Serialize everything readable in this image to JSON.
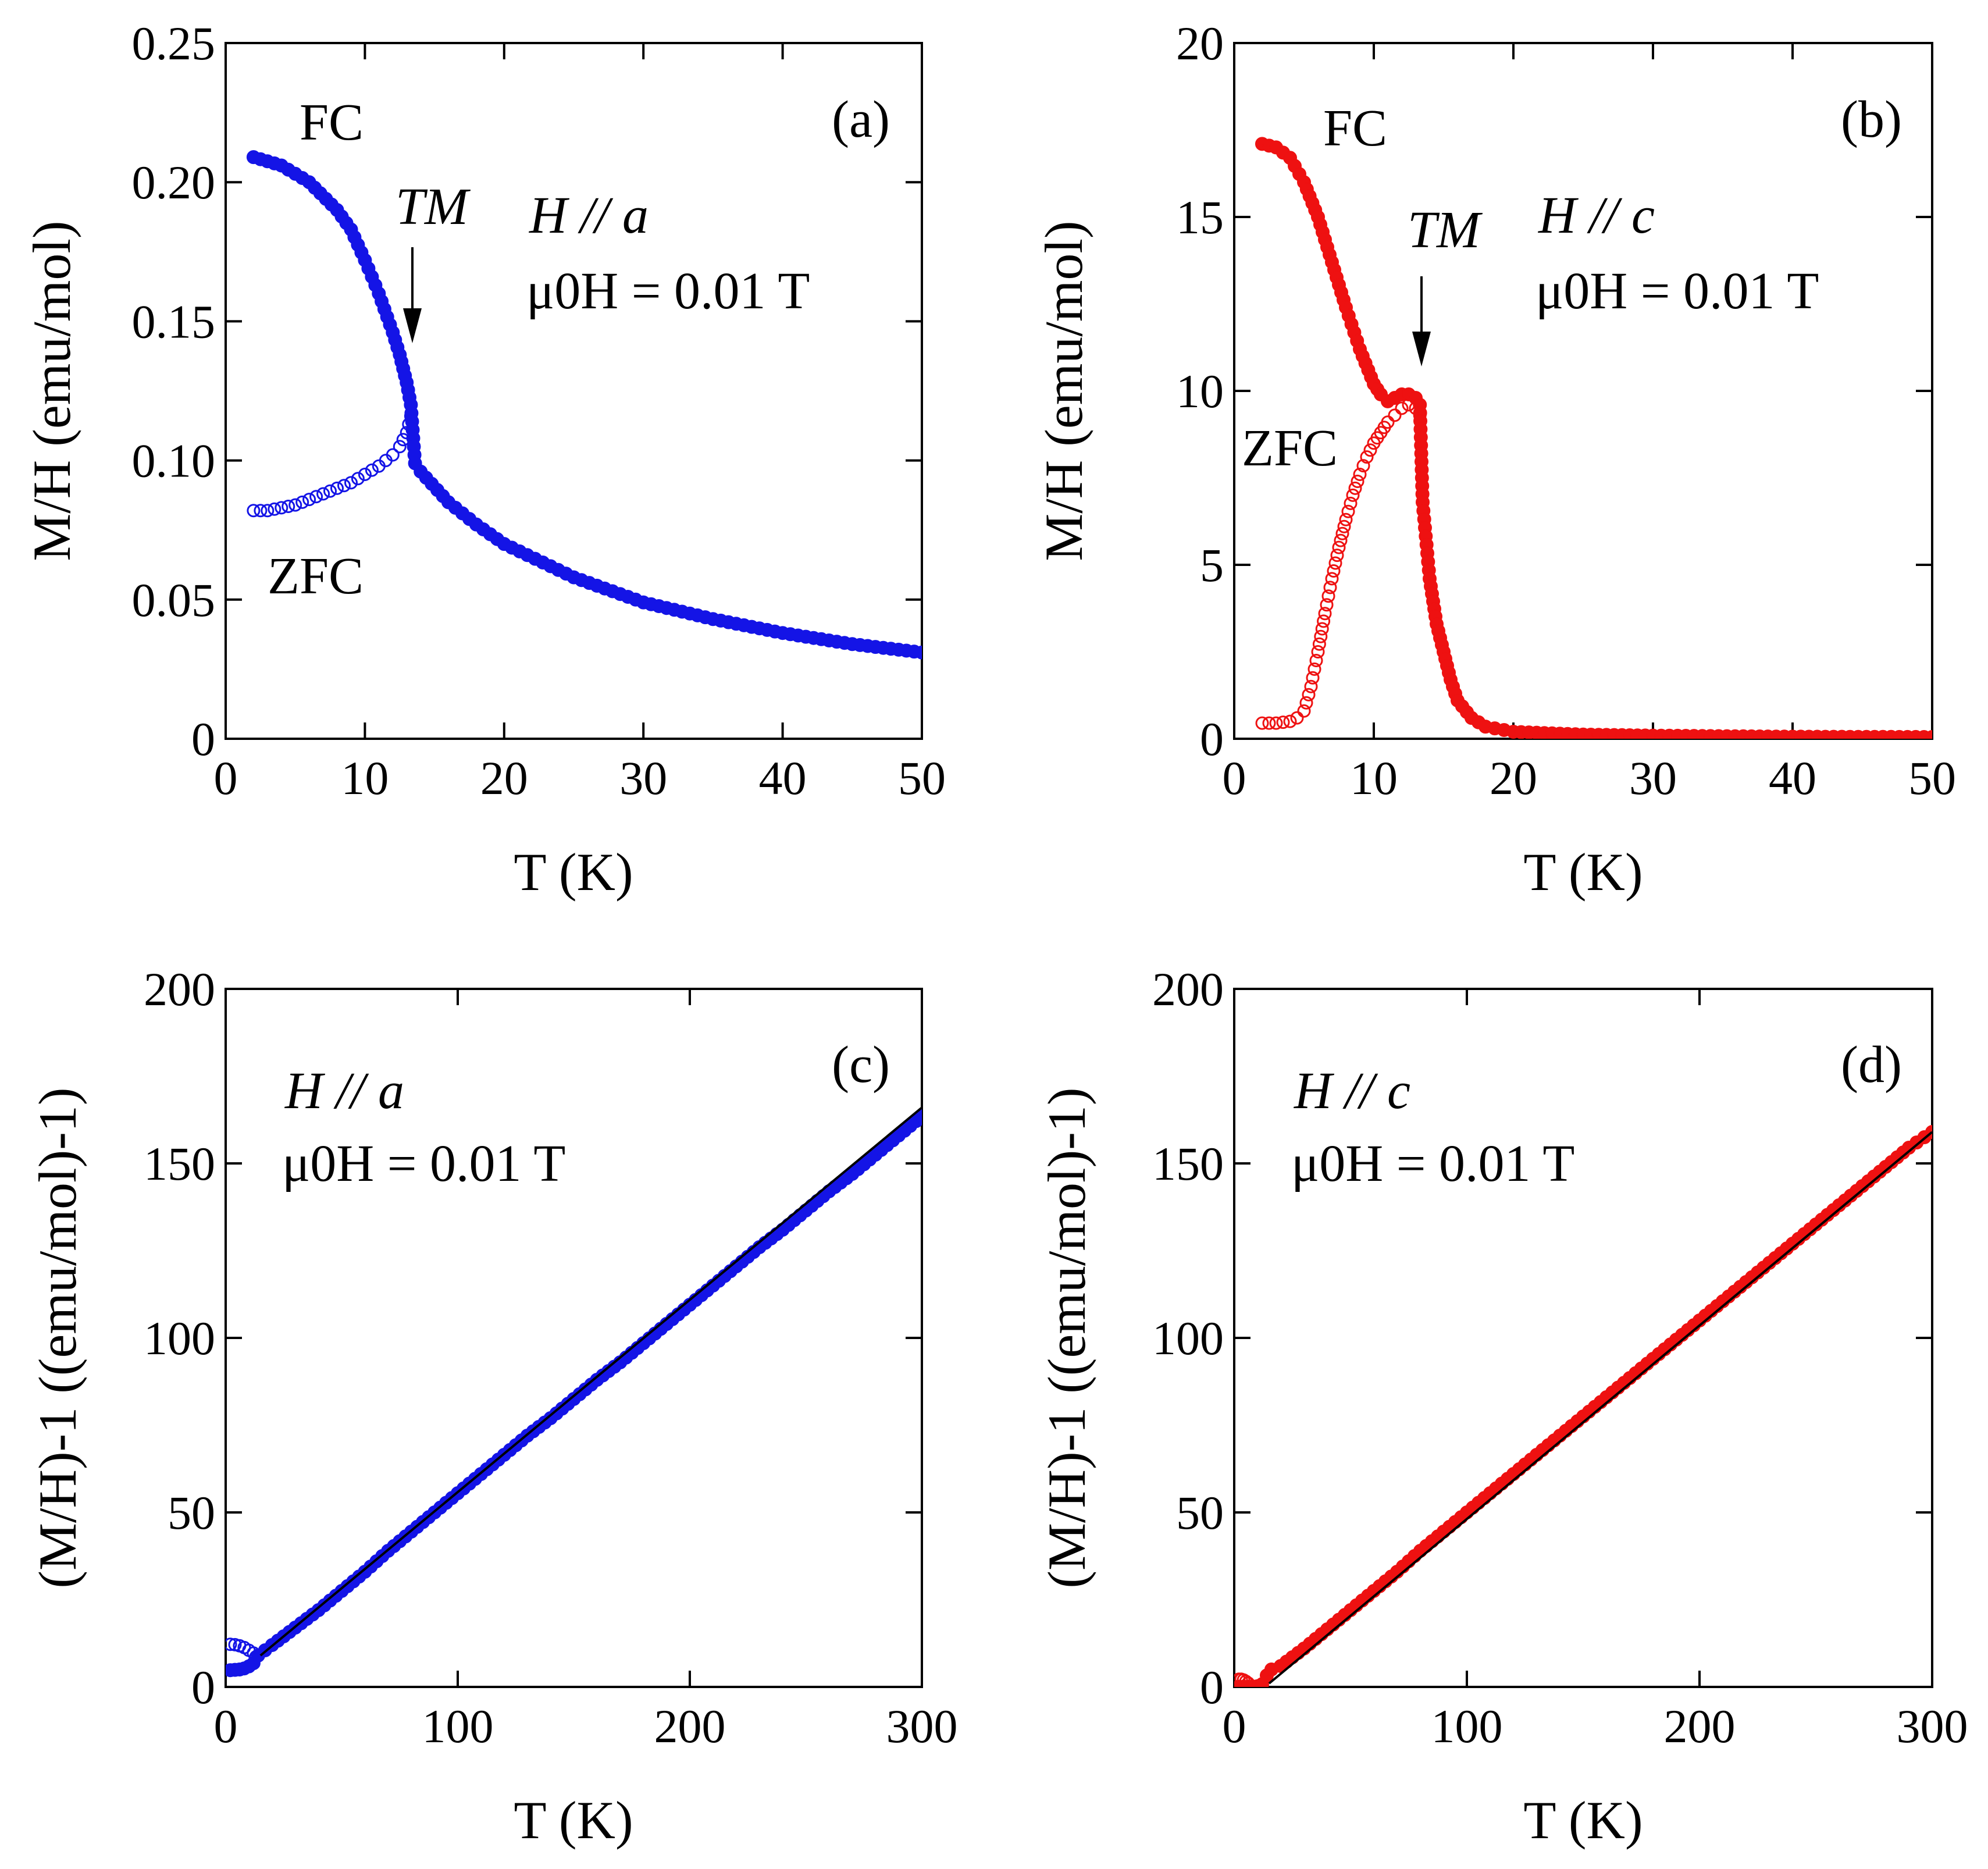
{
  "chart_data": [
    {
      "type": "scatter",
      "panel_label": "(a)",
      "condition_direction": "H // a",
      "condition_field": "μ0H = 0.01 T",
      "xlabel": "T (K)",
      "ylabel": "M/H  (emu/mol)",
      "xlim": [
        0,
        50
      ],
      "ylim": [
        0,
        0.25
      ],
      "xticks": [
        "0",
        "10",
        "20",
        "30",
        "40",
        "50"
      ],
      "yticks": [
        "0",
        "0.05",
        "0.10",
        "0.15",
        "0.20",
        "0.25"
      ],
      "transition_label": "TM",
      "transition_T": 13.3,
      "color": "#1414e6",
      "series": [
        {
          "name": "FC",
          "marker": "filled",
          "x": [
            2,
            4,
            6,
            8,
            9,
            10,
            11,
            12,
            12.5,
            13,
            13.3,
            13.6,
            14,
            16,
            18,
            20,
            25,
            30,
            35,
            40,
            45,
            50
          ],
          "y": [
            0.209,
            0.206,
            0.2,
            0.19,
            0.183,
            0.172,
            0.16,
            0.146,
            0.138,
            0.128,
            0.12,
            0.099,
            0.096,
            0.085,
            0.077,
            0.07,
            0.058,
            0.049,
            0.043,
            0.038,
            0.034,
            0.031
          ]
        },
        {
          "name": "ZFC",
          "marker": "open",
          "x": [
            2,
            3,
            4,
            5,
            6,
            7,
            8,
            9,
            10,
            11,
            12,
            12.5,
            13,
            13.3
          ],
          "y": [
            0.082,
            0.082,
            0.083,
            0.084,
            0.086,
            0.088,
            0.09,
            0.092,
            0.095,
            0.098,
            0.102,
            0.105,
            0.11,
            0.116
          ]
        }
      ]
    },
    {
      "type": "scatter",
      "panel_label": "(b)",
      "condition_direction": "H // c",
      "condition_field": "μ0H = 0.01 T",
      "xlabel": "T (K)",
      "ylabel": "M/H  (emu/mol)",
      "xlim": [
        0,
        50
      ],
      "ylim": [
        0,
        20
      ],
      "xticks": [
        "0",
        "10",
        "20",
        "30",
        "40",
        "50"
      ],
      "yticks": [
        "0",
        "5",
        "10",
        "15",
        "20"
      ],
      "transition_label": "TM",
      "transition_T": 13.3,
      "color": "#ee1111",
      "series": [
        {
          "name": "FC",
          "marker": "filled",
          "x": [
            2,
            3,
            4,
            5,
            6,
            7,
            8,
            9,
            10,
            10.5,
            11,
            11.5,
            12,
            12.5,
            13,
            13.3,
            13.5,
            14,
            14.5,
            15,
            15.5,
            16,
            17,
            18,
            20,
            25,
            30,
            40,
            50
          ],
          "y": [
            17.1,
            17.0,
            16.7,
            16.0,
            15.0,
            13.7,
            12.4,
            11.2,
            10.2,
            9.9,
            9.7,
            9.8,
            9.9,
            9.9,
            9.8,
            9.6,
            6.8,
            4.6,
            3.3,
            2.5,
            1.7,
            1.1,
            0.6,
            0.35,
            0.2,
            0.12,
            0.09,
            0.06,
            0.05
          ]
        },
        {
          "name": "ZFC",
          "marker": "open",
          "x": [
            2,
            3,
            4,
            4.5,
            5,
            5.5,
            6,
            6.5,
            7,
            7.5,
            8,
            8.5,
            9,
            9.5,
            10,
            10.5,
            11,
            11.5,
            12,
            12.5,
            13,
            13.3
          ],
          "y": [
            0.45,
            0.45,
            0.5,
            0.6,
            0.8,
            1.5,
            2.5,
            3.6,
            4.6,
            5.5,
            6.3,
            7.0,
            7.6,
            8.1,
            8.5,
            8.8,
            9.1,
            9.3,
            9.5,
            9.6,
            9.5,
            9.3
          ]
        }
      ]
    },
    {
      "type": "scatter",
      "panel_label": "(c)",
      "condition_direction": "H // a",
      "condition_field": "μ0H = 0.01 T",
      "xlabel": "T (K)",
      "ylabel": "(M/H)-1  ((emu/mol)-1)",
      "xlim": [
        0,
        300
      ],
      "ylim": [
        0,
        200
      ],
      "xticks": [
        "0",
        "100",
        "200",
        "300"
      ],
      "yticks": [
        "0",
        "50",
        "100",
        "150",
        "200"
      ],
      "color": "#1414e6",
      "fit_line": {
        "x": [
          15,
          300
        ],
        "y": [
          9,
          166
        ]
      },
      "series": [
        {
          "name": "FC",
          "marker": "filled",
          "x": [
            2,
            4,
            6,
            8,
            10,
            12,
            14,
            20,
            30,
            40,
            50,
            60,
            70,
            80,
            90,
            100,
            110,
            120,
            130,
            140,
            150,
            160,
            170,
            180,
            190,
            200,
            210,
            220,
            230,
            240,
            250,
            260,
            270,
            280,
            290,
            300
          ],
          "y": [
            4.8,
            4.9,
            5.0,
            5.3,
            5.9,
            6.8,
            9.0,
            12,
            17,
            22,
            27.5,
            33,
            39,
            44.5,
            50,
            55.5,
            61,
            66.5,
            72,
            77,
            82.5,
            88,
            93,
            98.5,
            104,
            109.5,
            115,
            120.5,
            126,
            131,
            136.5,
            142,
            147,
            152.5,
            158,
            163.5
          ]
        },
        {
          "name": "ZFC",
          "marker": "open",
          "x": [
            2,
            4,
            6,
            8,
            10,
            12,
            13
          ],
          "y": [
            12.2,
            12.1,
            11.8,
            11.3,
            10.5,
            9.7,
            8.6
          ]
        }
      ]
    },
    {
      "type": "scatter",
      "panel_label": "(d)",
      "condition_direction": "H // c",
      "condition_field": "μ0H = 0.01 T",
      "xlabel": "T (K)",
      "ylabel": "(M/H)-1  ((emu/mol)-1)",
      "xlim": [
        0,
        300
      ],
      "ylim": [
        0,
        200
      ],
      "xticks": [
        "0",
        "100",
        "200",
        "300"
      ],
      "yticks": [
        "0",
        "50",
        "100",
        "150",
        "200"
      ],
      "color": "#ee1111",
      "fit_line": {
        "x": [
          15,
          300
        ],
        "y": [
          1,
          159
        ]
      },
      "series": [
        {
          "name": "FC",
          "marker": "filled",
          "x": [
            2,
            4,
            6,
            8,
            10,
            12,
            14,
            16,
            20,
            30,
            40,
            50,
            60,
            70,
            80,
            90,
            100,
            110,
            120,
            130,
            140,
            150,
            160,
            170,
            180,
            190,
            200,
            210,
            220,
            230,
            240,
            250,
            260,
            270,
            280,
            290,
            300
          ],
          "y": [
            0.06,
            0.06,
            0.07,
            0.1,
            0.2,
            0.8,
            3.3,
            5,
            6,
            11,
            16.5,
            22,
            27.5,
            33,
            39,
            44.5,
            50,
            55.5,
            61,
            66.5,
            72,
            77.5,
            83,
            88.5,
            94,
            99.5,
            105,
            110.5,
            116,
            121.5,
            127,
            132.5,
            138,
            143.5,
            149,
            154.5,
            159
          ]
        },
        {
          "name": "ZFC",
          "marker": "open",
          "x": [
            2,
            3,
            4,
            5,
            6
          ],
          "y": [
            2.2,
            2.2,
            2.0,
            1.6,
            1.1
          ]
        }
      ]
    }
  ]
}
